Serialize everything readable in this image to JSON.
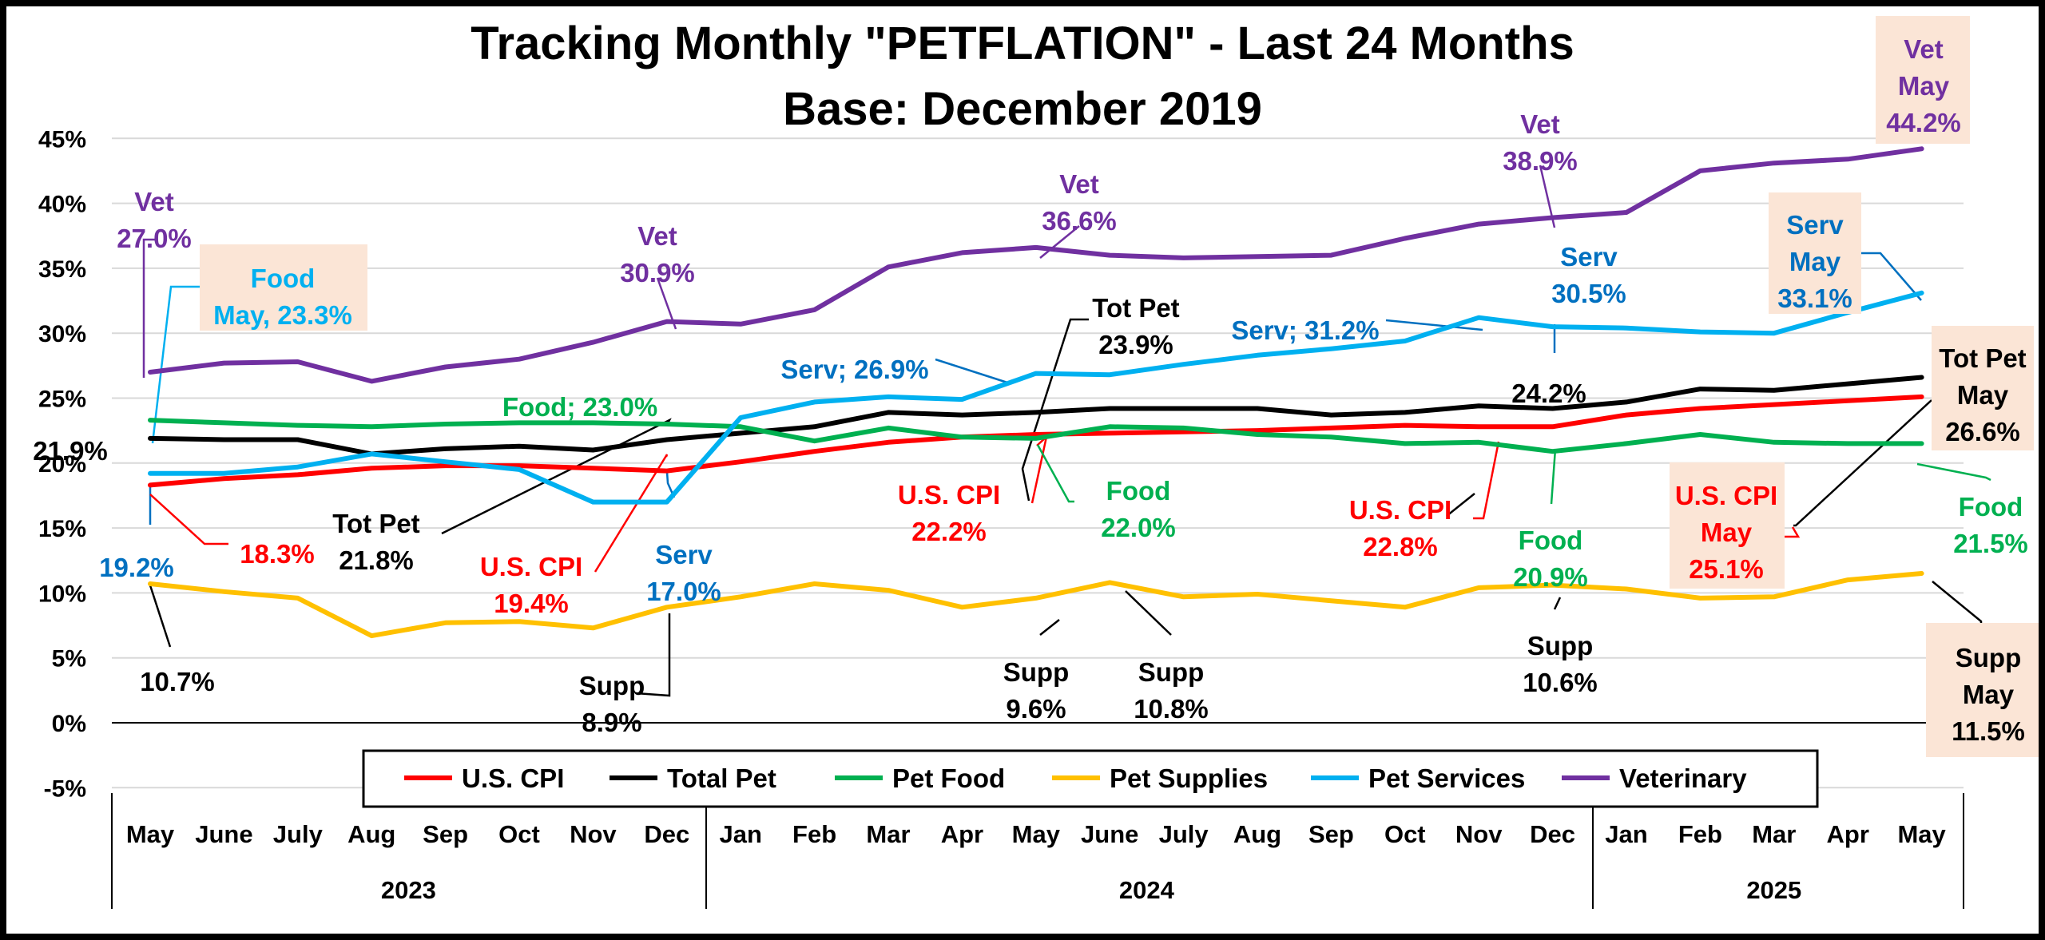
{
  "chart_data": {
    "type": "line",
    "title": "Tracking Monthly \"PETFLATION\" - Last 24 Months",
    "subtitle": "Base: December 2019",
    "xlabel": "",
    "ylabel": "",
    "ylim": [
      -5,
      45
    ],
    "y_ticks": [
      "-5%",
      "0%",
      "5%",
      "10%",
      "15%",
      "20%",
      "25%",
      "30%",
      "35%",
      "40%",
      "45%"
    ],
    "y_tick_values": [
      -5,
      0,
      5,
      10,
      15,
      20,
      25,
      30,
      35,
      40,
      45
    ],
    "grid": true,
    "categories": [
      "May",
      "June",
      "July",
      "Aug",
      "Sep",
      "Oct",
      "Nov",
      "Dec",
      "Jan",
      "Feb",
      "Mar",
      "Apr",
      "May",
      "June",
      "July",
      "Aug",
      "Sep",
      "Oct",
      "Nov",
      "Dec",
      "Jan",
      "Feb",
      "Mar",
      "Apr",
      "May"
    ],
    "year_groups": [
      {
        "label": "2023",
        "start": 0,
        "end": 7
      },
      {
        "label": "2024",
        "start": 8,
        "end": 19
      },
      {
        "label": "2025",
        "start": 20,
        "end": 24
      }
    ],
    "legend_position": "bottom",
    "series": [
      {
        "name": "U.S. CPI",
        "color": "#ff0000",
        "values": [
          18.3,
          18.8,
          19.1,
          19.6,
          19.8,
          19.8,
          19.6,
          19.4,
          20.1,
          20.9,
          21.6,
          22.0,
          22.2,
          22.3,
          22.4,
          22.5,
          22.7,
          22.9,
          22.8,
          22.8,
          23.7,
          24.2,
          24.5,
          24.8,
          25.1
        ]
      },
      {
        "name": "Total Pet",
        "color": "#000000",
        "values": [
          21.9,
          21.8,
          21.8,
          20.7,
          21.1,
          21.3,
          21.0,
          21.8,
          22.3,
          22.8,
          23.9,
          23.7,
          23.9,
          24.2,
          24.2,
          24.2,
          23.7,
          23.9,
          24.4,
          24.2,
          24.7,
          25.7,
          25.6,
          26.1,
          26.6
        ]
      },
      {
        "name": "Pet Food",
        "color": "#00b050",
        "values": [
          23.3,
          23.1,
          22.9,
          22.8,
          23.0,
          23.1,
          23.1,
          23.0,
          22.8,
          21.7,
          22.7,
          22.0,
          21.9,
          22.8,
          22.7,
          22.2,
          22.0,
          21.5,
          21.6,
          20.9,
          21.5,
          22.2,
          21.6,
          21.5,
          21.5
        ]
      },
      {
        "name": "Pet Supplies",
        "color": "#ffc000",
        "values": [
          10.7,
          10.1,
          9.6,
          6.7,
          7.7,
          7.8,
          7.3,
          8.9,
          9.7,
          10.7,
          10.2,
          8.9,
          9.6,
          10.8,
          9.7,
          9.9,
          9.4,
          8.9,
          10.4,
          10.6,
          10.3,
          9.6,
          9.7,
          11.0,
          11.5
        ]
      },
      {
        "name": "Pet Services",
        "color": "#00b0f0",
        "values": [
          19.2,
          19.2,
          19.7,
          20.7,
          20.1,
          19.5,
          17.0,
          17.0,
          23.5,
          24.7,
          25.1,
          24.9,
          26.9,
          26.8,
          27.6,
          28.3,
          28.8,
          29.4,
          31.2,
          30.5,
          30.4,
          30.1,
          30.0,
          31.6,
          33.1
        ]
      },
      {
        "name": "Veterinary",
        "color": "#7030a0",
        "values": [
          27.0,
          27.7,
          27.8,
          26.3,
          27.4,
          28.0,
          29.3,
          30.9,
          30.7,
          31.8,
          35.1,
          36.2,
          36.6,
          36.0,
          35.8,
          35.9,
          36.0,
          37.3,
          38.4,
          38.9,
          39.3,
          42.5,
          43.1,
          43.4,
          44.2
        ]
      }
    ],
    "annotations": [
      {
        "lines": [
          "Vet",
          "27.0%"
        ],
        "color": "#7030a0"
      },
      {
        "lines": [
          "Food",
          "May, 23.3%"
        ],
        "color": "#00b0f0"
      },
      {
        "lines": [
          "Vet",
          "30.9%"
        ],
        "color": "#7030a0"
      },
      {
        "lines": [
          "Vet",
          "36.6%"
        ],
        "color": "#7030a0"
      },
      {
        "lines": [
          "Vet",
          "38.9%"
        ],
        "color": "#7030a0"
      },
      {
        "lines": [
          "Vet",
          "May",
          "44.2%"
        ],
        "color": "#7030a0"
      },
      {
        "lines": [
          "Serv",
          "May",
          "33.1%"
        ],
        "color": "#0070c0"
      },
      {
        "lines": [
          "Serv",
          "30.5%"
        ],
        "color": "#0070c0"
      },
      {
        "lines": [
          "Serv; 31.2%"
        ],
        "color": "#0070c0"
      },
      {
        "lines": [
          "Serv; 26.9%"
        ],
        "color": "#0070c0"
      },
      {
        "lines": [
          "Tot Pet",
          "23.9%"
        ],
        "color": "#000000"
      },
      {
        "lines": [
          "Food; 23.0%"
        ],
        "color": "#00b050"
      },
      {
        "lines": [
          "21.9%"
        ],
        "color": "#000000"
      },
      {
        "lines": [
          "Tot Pet",
          "May",
          "26.6%"
        ],
        "color": "#000000"
      },
      {
        "lines": [
          "24.2%"
        ],
        "color": "#000000"
      },
      {
        "lines": [
          "19.2%"
        ],
        "color": "#0070c0"
      },
      {
        "lines": [
          "18.3%"
        ],
        "color": "#ff0000"
      },
      {
        "lines": [
          "Tot Pet",
          "21.8%"
        ],
        "color": "#000000"
      },
      {
        "lines": [
          "U.S. CPI",
          "19.4%"
        ],
        "color": "#ff0000"
      },
      {
        "lines": [
          "Serv",
          "17.0%"
        ],
        "color": "#0070c0"
      },
      {
        "lines": [
          "U.S. CPI",
          "22.2%"
        ],
        "color": "#ff0000"
      },
      {
        "lines": [
          "Food",
          "22.0%"
        ],
        "color": "#00b050"
      },
      {
        "lines": [
          "U.S. CPI",
          "22.8%"
        ],
        "color": "#ff0000"
      },
      {
        "lines": [
          "Food",
          "20.9%"
        ],
        "color": "#00b050"
      },
      {
        "lines": [
          "U.S. CPI",
          "May",
          "25.1%"
        ],
        "color": "#ff0000"
      },
      {
        "lines": [
          "Food",
          "21.5%"
        ],
        "color": "#00b050"
      },
      {
        "lines": [
          "10.7%"
        ],
        "color": "#000000"
      },
      {
        "lines": [
          "Supp",
          "8.9%"
        ],
        "color": "#000000"
      },
      {
        "lines": [
          "Supp",
          "9.6%"
        ],
        "color": "#000000"
      },
      {
        "lines": [
          "Supp",
          "10.8%"
        ],
        "color": "#000000"
      },
      {
        "lines": [
          "Supp",
          "10.6%"
        ],
        "color": "#000000"
      },
      {
        "lines": [
          "Supp",
          "May",
          "11.5%"
        ],
        "color": "#000000"
      }
    ]
  }
}
